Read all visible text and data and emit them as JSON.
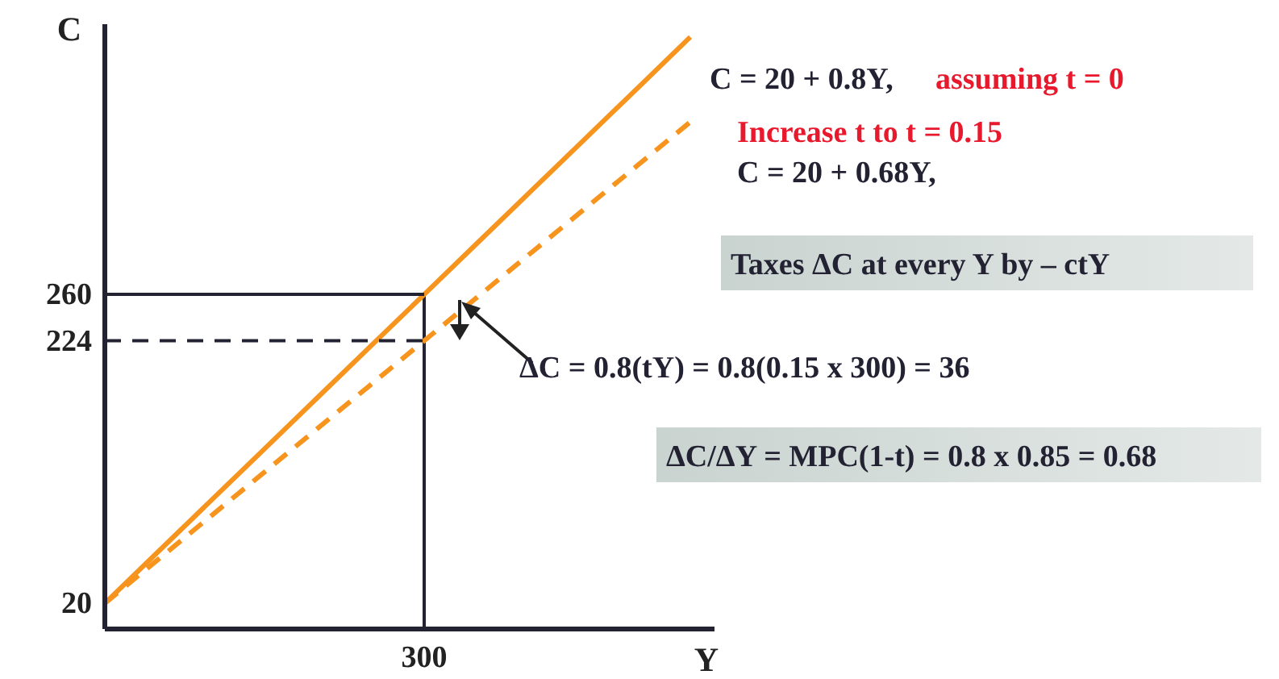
{
  "chart_data": {
    "type": "line",
    "xlabel": "Y",
    "ylabel": "C",
    "grid": false,
    "marker": "none",
    "categories": [
      null,
      null,
      null,
      null,
      null,
      null,
      "300",
      null,
      null,
      null,
      null,
      null
    ],
    "ylim": [
      0,
      470
    ],
    "yticks": [
      20,
      224,
      260
    ],
    "series": [
      {
        "color": "#f7941d",
        "values": [
          20,
          60,
          100,
          140,
          180,
          220,
          260,
          300,
          340,
          380,
          420,
          460
        ],
        "line_style": "solid"
      },
      {
        "color": "#f7941d",
        "values": [
          20,
          54,
          88,
          122,
          156,
          190,
          224,
          258,
          292,
          326,
          360,
          394
        ],
        "line_style": "dashed"
      },
      {
        "color": "#222233",
        "values": [
          260,
          260,
          260,
          260,
          260,
          260,
          260,
          null,
          null,
          null,
          null,
          null
        ],
        "line_style": "solid"
      },
      {
        "color": "#222233",
        "values": [
          224,
          224,
          224,
          224,
          224,
          224,
          224,
          null,
          null,
          null,
          null,
          null
        ],
        "line_style": "dashed"
      }
    ],
    "ref_lines": [
      {
        "axis": "x",
        "value": "300",
        "color": "#222233",
        "line_style": "solid"
      }
    ],
    "annotations": [
      "C = 20 + 0.8Y,",
      "assuming t = 0",
      "Increase t to t = 0.15",
      "C = 20 + 0.68Y,",
      "Taxes ΔC at every Y by  – ctY",
      "ΔC = 0.8(tY) = 0.8(0.15 x 300) = 36",
      "ΔC/ΔY = MPC(1-t) = 0.8 x 0.85 = 0.68"
    ]
  }
}
